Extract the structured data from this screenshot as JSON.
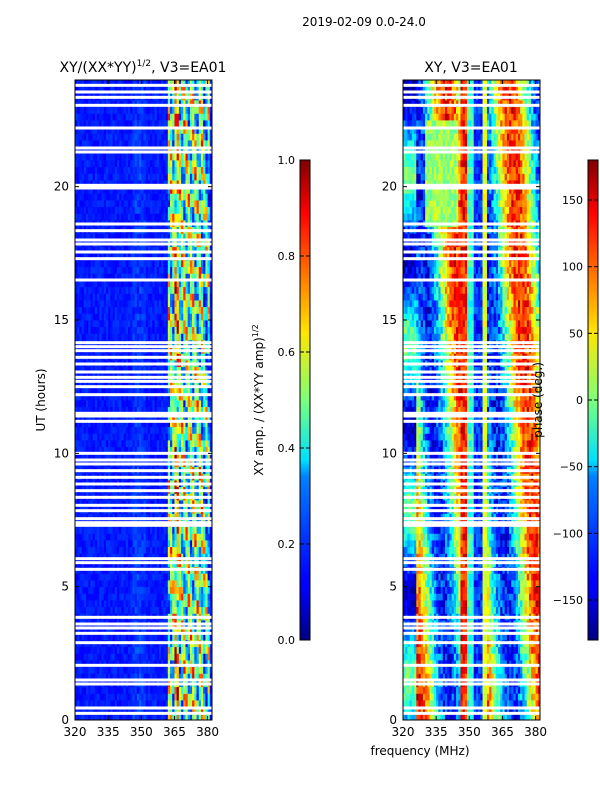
{
  "suptitle": "2019-02-09 0.0-24.0",
  "xlabel": "frequency (MHz)",
  "ylabel": "UT (hours)",
  "chart_data": [
    {
      "type": "heatmap",
      "title_main": "XY/(XX*YY)",
      "title_exp": "1/2",
      "title_suffix": ", V3=EA01",
      "xlabel": "frequency (MHz)",
      "ylabel": "UT (hours)",
      "xlim": [
        320,
        382
      ],
      "ylim": [
        0,
        24
      ],
      "xticks": [
        320,
        335,
        350,
        365,
        380
      ],
      "yticks": [
        0,
        5,
        10,
        15,
        20
      ],
      "colorbar": {
        "label_main": "XY amp. / (XX*YY amp)",
        "label_exp": "1/2",
        "range": [
          0.0,
          1.0
        ],
        "ticks": [
          "0.0",
          "0.2",
          "0.4",
          "0.6",
          "0.8",
          "1.0"
        ],
        "tick_values": [
          0.0,
          0.2,
          0.4,
          0.6,
          0.8,
          1.0
        ]
      },
      "colormap": "jet"
    },
    {
      "type": "heatmap",
      "title": "XY, V3=EA01",
      "xlabel": "frequency (MHz)",
      "ylabel": "",
      "xlim": [
        320,
        382
      ],
      "ylim": [
        0,
        24
      ],
      "xticks": [
        320,
        335,
        350,
        365,
        380
      ],
      "yticks": [
        0,
        5,
        10,
        15,
        20
      ],
      "colorbar": {
        "label": "phase (deg.)",
        "range": [
          -180,
          180
        ],
        "ticks": [
          "150",
          "100",
          "50",
          "0",
          "−50",
          "−100",
          "−150"
        ],
        "tick_values": [
          150,
          100,
          50,
          0,
          -50,
          -100,
          -150
        ]
      },
      "colormap": "jet"
    }
  ],
  "flagged_hours": [
    0.25,
    0.45,
    1.35,
    1.5,
    2.05,
    2.9,
    3.25,
    3.45,
    3.6,
    3.85,
    5.65,
    5.9,
    6.05,
    7.3,
    7.4,
    7.55,
    7.85,
    8.05,
    8.35,
    8.6,
    8.85,
    9.1,
    9.35,
    9.6,
    9.75,
    10.0,
    11.2,
    11.4,
    11.5,
    12.2,
    12.5,
    12.7,
    12.85,
    13.05,
    13.35,
    13.6,
    13.85,
    14.0,
    14.15,
    16.5,
    17.3,
    17.55,
    17.85,
    18.0,
    18.35,
    18.6,
    19.95,
    20.05,
    21.3,
    21.45,
    22.2,
    23.05,
    23.35,
    23.55,
    23.8
  ]
}
